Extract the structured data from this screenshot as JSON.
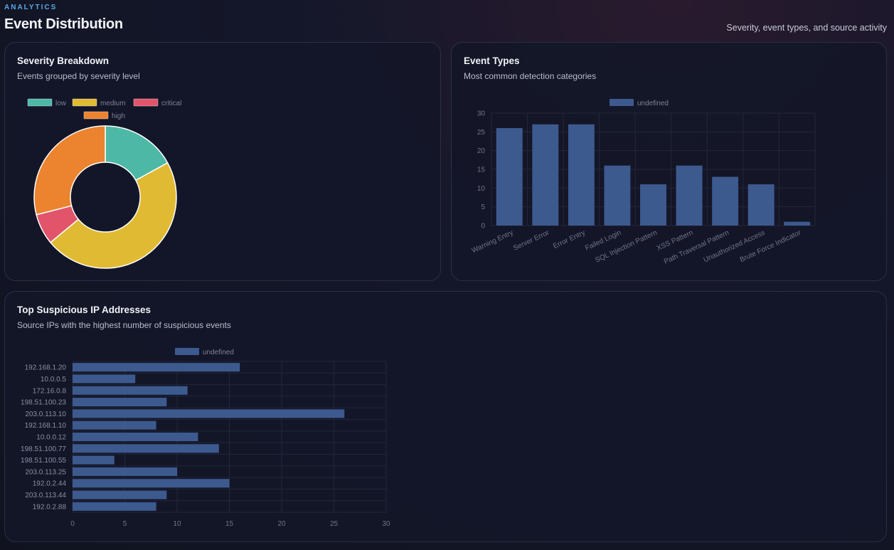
{
  "header": {
    "eyebrow": "ANALYTICS",
    "title": "Event Distribution",
    "subtitle": "Severity, event types, and source activity"
  },
  "severity_card": {
    "title": "Severity Breakdown",
    "subtitle": "Events grouped by severity level"
  },
  "event_types_card": {
    "title": "Event Types",
    "subtitle": "Most common detection categories"
  },
  "ips_card": {
    "title": "Top Suspicious IP Addresses",
    "subtitle": "Source IPs with the highest number of suspicious events"
  },
  "colors": {
    "low": "#4db8a6",
    "medium": "#e0ba33",
    "critical": "#e2546a",
    "high": "#ec832f",
    "bar": "#3d5a8f"
  },
  "chart_data": [
    {
      "type": "pie",
      "variant": "doughnut",
      "legend": [
        "low",
        "medium",
        "critical",
        "high"
      ],
      "categories": [
        "low",
        "medium",
        "critical",
        "high"
      ],
      "values": [
        17,
        47,
        7,
        29
      ],
      "legend_position": "top"
    },
    {
      "type": "bar",
      "orientation": "vertical",
      "legend": [
        "undefined"
      ],
      "categories": [
        "Warning Entry",
        "Server Error",
        "Error Entry",
        "Failed Login",
        "SQL Injection Pattern",
        "XSS Pattern",
        "Path Traversal Pattern",
        "Unauthorized Access",
        "Brute Force Indicator"
      ],
      "values": [
        26,
        27,
        27,
        16,
        11,
        16,
        13,
        11,
        1
      ],
      "yticks": [
        "0",
        "5",
        "10",
        "15",
        "20",
        "25",
        "30"
      ],
      "ylim": [
        0,
        30
      ],
      "grid": true
    },
    {
      "type": "bar",
      "orientation": "horizontal",
      "legend": [
        "undefined"
      ],
      "categories": [
        "192.168.1.20",
        "10.0.0.5",
        "172.16.0.8",
        "198.51.100.23",
        "203.0.113.10",
        "192.168.1.10",
        "10.0.0.12",
        "198.51.100.77",
        "198.51.100.55",
        "203.0.113.25",
        "192.0.2.44",
        "203.0.113.44",
        "192.0.2.88"
      ],
      "values": [
        16,
        6,
        11,
        9,
        26,
        8,
        12,
        14,
        4,
        10,
        15,
        9,
        8
      ],
      "xticks": [
        "0",
        "5",
        "10",
        "15",
        "20",
        "25",
        "30"
      ],
      "xlim": [
        0,
        30
      ],
      "grid": true
    }
  ]
}
